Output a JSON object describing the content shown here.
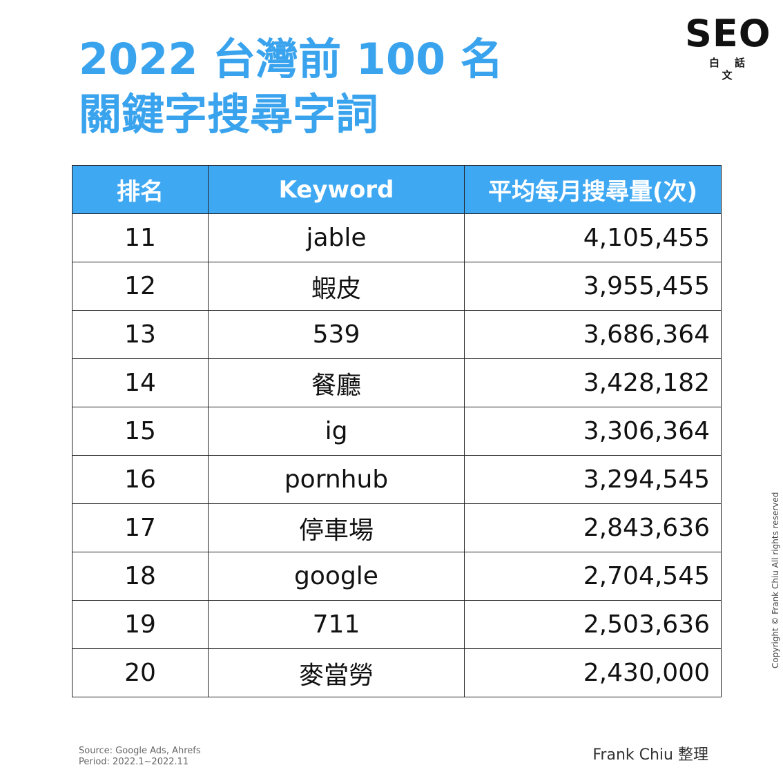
{
  "title": {
    "line1": "2022 台灣前 100 名",
    "line2": "關鍵字搜尋字詞",
    "color": "#3aa3ee"
  },
  "logo": {
    "main": "SEO",
    "sub": "白話文"
  },
  "chart_data": {
    "type": "table",
    "header_color": "#3fa8f3",
    "columns": [
      "排名",
      "Keyword",
      "平均每月搜尋量(次)"
    ],
    "rows": [
      {
        "rank": "11",
        "keyword": "jable",
        "volume": "4,105,455"
      },
      {
        "rank": "12",
        "keyword": "蝦皮",
        "volume": "3,955,455"
      },
      {
        "rank": "13",
        "keyword": "539",
        "volume": "3,686,364"
      },
      {
        "rank": "14",
        "keyword": "餐廳",
        "volume": "3,428,182"
      },
      {
        "rank": "15",
        "keyword": "ig",
        "volume": "3,306,364"
      },
      {
        "rank": "16",
        "keyword": "pornhub",
        "volume": "3,294,545"
      },
      {
        "rank": "17",
        "keyword": "停車場",
        "volume": "2,843,636"
      },
      {
        "rank": "18",
        "keyword": "google",
        "volume": "2,704,545"
      },
      {
        "rank": "19",
        "keyword": "711",
        "volume": "2,503,636"
      },
      {
        "rank": "20",
        "keyword": "麥當勞",
        "volume": "2,430,000"
      }
    ]
  },
  "copyright": "Copyright © Frank Chiu All rights reserved",
  "footer": {
    "source": "Source: Google Ads, Ahrefs",
    "period": "Period: 2022.1~2022.11",
    "author": "Frank Chiu 整理"
  }
}
